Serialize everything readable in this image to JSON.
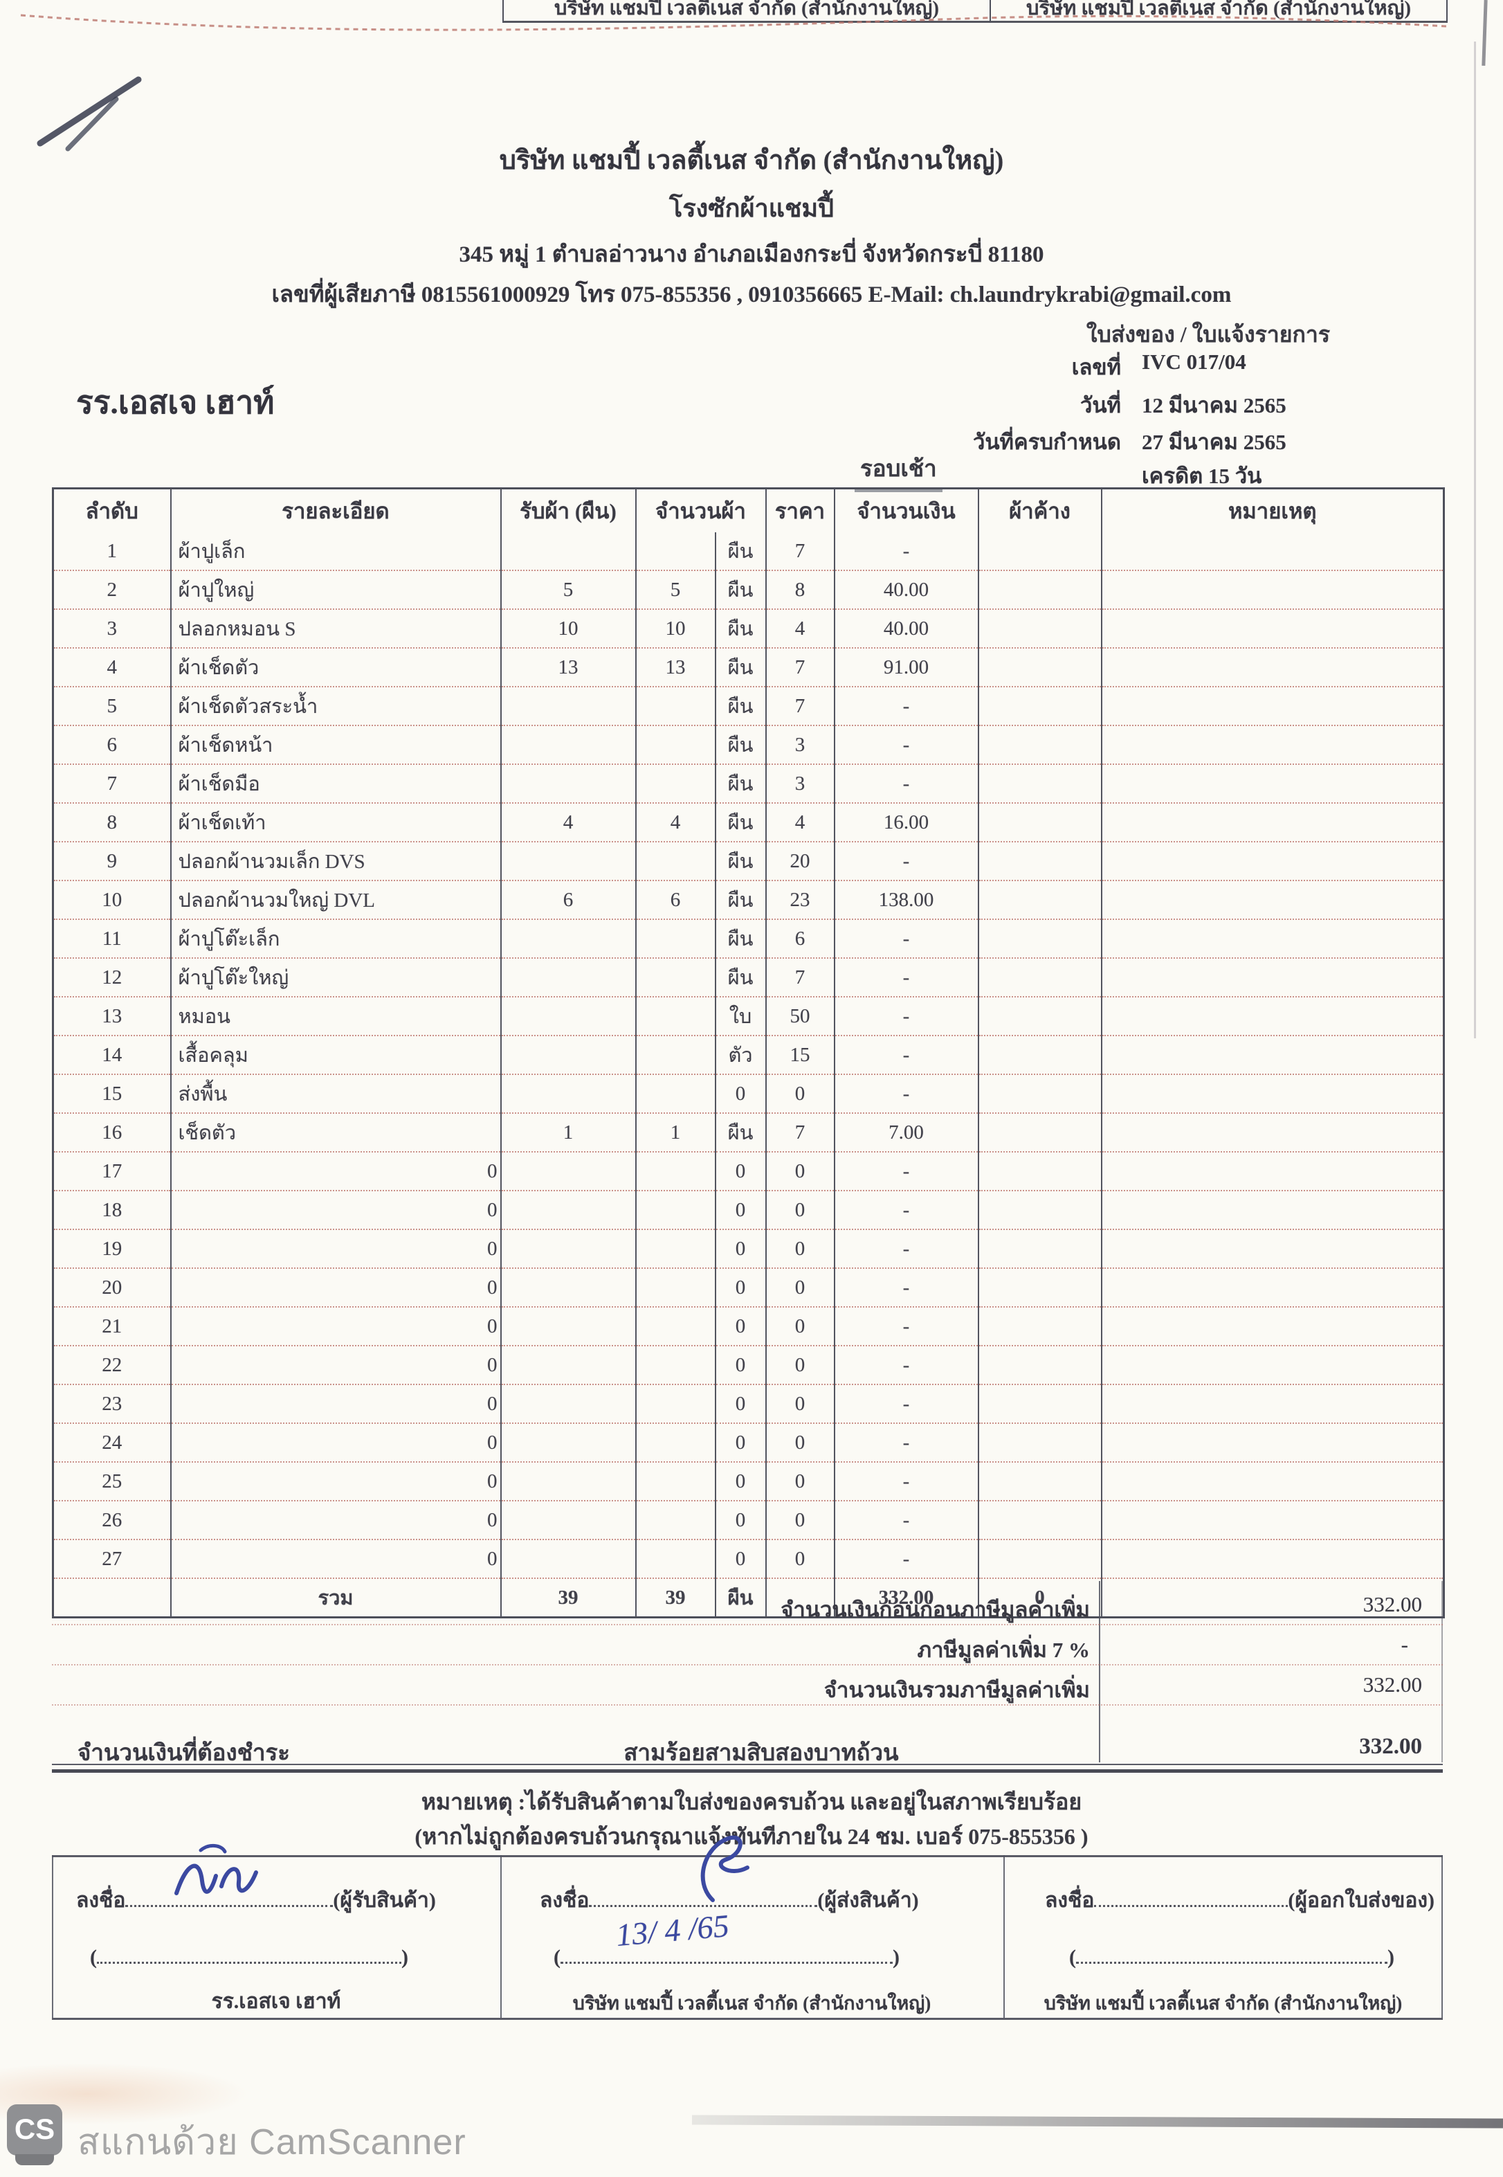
{
  "scan": {
    "top_cells": [
      "บริษัท แชมปี้ เวลตี้เนส จำกัด (สำนักงานใหญ่)",
      "บริษัท แชมปี้ เวลตี้เนส จำกัด (สำนักงานใหญ่)"
    ],
    "camscanner_logo": "CS",
    "camscanner_label": "สแกนด้วย CamScanner"
  },
  "header": {
    "company_name": "บริษัท แชมปี้ เวลตี้เนส จำกัด (สำนักงานใหญ่)",
    "company_sub": "โรงซักผ้าแชมปี้",
    "address": "345 หมู่ 1 ตำบลอ่าวนาง อำเภอเมืองกระบี่ จังหวัดกระบี่ 81180",
    "tax_line": "เลขที่ผู้เสียภาษี 0815561000929 โทร 075-855356 , 0910356665 E-Mail: ch.laundrykrabi@gmail.com",
    "doc_type": "ใบส่งของ / ใบแจ้งรายการ"
  },
  "meta": {
    "customer": "รร.เอสเจ เฮาท์",
    "no_label": "เลขที่",
    "no_value": "IVC 017/04",
    "date_label": "วันที่",
    "date_value": "12 มีนาคม 2565",
    "due_label": "วันที่ครบกำหนด",
    "due_value": "27 มีนาคม 2565",
    "credit_value": "เครดิต 15 วัน",
    "round_label": "รอบเช้า"
  },
  "table": {
    "headers": {
      "no": "ลำดับ",
      "desc": "รายละเอียด",
      "received": "รับผ้า (ผืน)",
      "qty": "จำนวนผ้า",
      "price": "ราคา",
      "amount": "จำนวนเงิน",
      "pending": "ผ้าค้าง",
      "note": "หมายเหตุ"
    },
    "rows": [
      {
        "no": "1",
        "desc": "ผ้าปูเล็ก",
        "received": "",
        "qty": "",
        "unit": "ผืน",
        "price": "7",
        "amount": "-",
        "pending": "",
        "note": ""
      },
      {
        "no": "2",
        "desc": "ผ้าปูใหญ่",
        "received": "5",
        "qty": "5",
        "unit": "ผืน",
        "price": "8",
        "amount": "40.00",
        "pending": "",
        "note": ""
      },
      {
        "no": "3",
        "desc": "ปลอกหมอน S",
        "received": "10",
        "qty": "10",
        "unit": "ผืน",
        "price": "4",
        "amount": "40.00",
        "pending": "",
        "note": ""
      },
      {
        "no": "4",
        "desc": "ผ้าเช็ดตัว",
        "received": "13",
        "qty": "13",
        "unit": "ผืน",
        "price": "7",
        "amount": "91.00",
        "pending": "",
        "note": ""
      },
      {
        "no": "5",
        "desc": "ผ้าเช็ดตัวสระน้ำ",
        "received": "",
        "qty": "",
        "unit": "ผืน",
        "price": "7",
        "amount": "-",
        "pending": "",
        "note": ""
      },
      {
        "no": "6",
        "desc": "ผ้าเช็ดหน้า",
        "received": "",
        "qty": "",
        "unit": "ผืน",
        "price": "3",
        "amount": "-",
        "pending": "",
        "note": ""
      },
      {
        "no": "7",
        "desc": "ผ้าเช็ดมือ",
        "received": "",
        "qty": "",
        "unit": "ผืน",
        "price": "3",
        "amount": "-",
        "pending": "",
        "note": ""
      },
      {
        "no": "8",
        "desc": "ผ้าเช็ดเท้า",
        "received": "4",
        "qty": "4",
        "unit": "ผืน",
        "price": "4",
        "amount": "16.00",
        "pending": "",
        "note": ""
      },
      {
        "no": "9",
        "desc": "ปลอกผ้านวมเล็ก DVS",
        "received": "",
        "qty": "",
        "unit": "ผืน",
        "price": "20",
        "amount": "-",
        "pending": "",
        "note": ""
      },
      {
        "no": "10",
        "desc": "ปลอกผ้านวมใหญ่ DVL",
        "received": "6",
        "qty": "6",
        "unit": "ผืน",
        "price": "23",
        "amount": "138.00",
        "pending": "",
        "note": ""
      },
      {
        "no": "11",
        "desc": "ผ้าปูโต๊ะเล็ก",
        "received": "",
        "qty": "",
        "unit": "ผืน",
        "price": "6",
        "amount": "-",
        "pending": "",
        "note": ""
      },
      {
        "no": "12",
        "desc": "ผ้าปูโต๊ะใหญ่",
        "received": "",
        "qty": "",
        "unit": "ผืน",
        "price": "7",
        "amount": "-",
        "pending": "",
        "note": ""
      },
      {
        "no": "13",
        "desc": "หมอน",
        "received": "",
        "qty": "",
        "unit": "ใบ",
        "price": "50",
        "amount": "-",
        "pending": "",
        "note": ""
      },
      {
        "no": "14",
        "desc": "เสื้อคลุม",
        "received": "",
        "qty": "",
        "unit": "ตัว",
        "price": "15",
        "amount": "-",
        "pending": "",
        "note": ""
      },
      {
        "no": "15",
        "desc": "ส่งพื้น",
        "received": "",
        "qty": "",
        "unit": "0",
        "price": "0",
        "amount": "-",
        "pending": "",
        "note": ""
      },
      {
        "no": "16",
        "desc": "เช็ดตัว",
        "received": "1",
        "qty": "1",
        "unit": "ผืน",
        "price": "7",
        "amount": "7.00",
        "pending": "",
        "note": ""
      },
      {
        "no": "17",
        "desc": "0",
        "received": "",
        "qty": "",
        "unit": "0",
        "price": "0",
        "amount": "-",
        "pending": "",
        "note": ""
      },
      {
        "no": "18",
        "desc": "0",
        "received": "",
        "qty": "",
        "unit": "0",
        "price": "0",
        "amount": "-",
        "pending": "",
        "note": ""
      },
      {
        "no": "19",
        "desc": "0",
        "received": "",
        "qty": "",
        "unit": "0",
        "price": "0",
        "amount": "-",
        "pending": "",
        "note": ""
      },
      {
        "no": "20",
        "desc": "0",
        "received": "",
        "qty": "",
        "unit": "0",
        "price": "0",
        "amount": "-",
        "pending": "",
        "note": ""
      },
      {
        "no": "21",
        "desc": "0",
        "received": "",
        "qty": "",
        "unit": "0",
        "price": "0",
        "amount": "-",
        "pending": "",
        "note": ""
      },
      {
        "no": "22",
        "desc": "0",
        "received": "",
        "qty": "",
        "unit": "0",
        "price": "0",
        "amount": "-",
        "pending": "",
        "note": ""
      },
      {
        "no": "23",
        "desc": "0",
        "received": "",
        "qty": "",
        "unit": "0",
        "price": "0",
        "amount": "-",
        "pending": "",
        "note": ""
      },
      {
        "no": "24",
        "desc": "0",
        "received": "",
        "qty": "",
        "unit": "0",
        "price": "0",
        "amount": "-",
        "pending": "",
        "note": ""
      },
      {
        "no": "25",
        "desc": "0",
        "received": "",
        "qty": "",
        "unit": "0",
        "price": "0",
        "amount": "-",
        "pending": "",
        "note": ""
      },
      {
        "no": "26",
        "desc": "0",
        "received": "",
        "qty": "",
        "unit": "0",
        "price": "0",
        "amount": "-",
        "pending": "",
        "note": ""
      },
      {
        "no": "27",
        "desc": "0",
        "received": "",
        "qty": "",
        "unit": "0",
        "price": "0",
        "amount": "-",
        "pending": "",
        "note": ""
      }
    ],
    "total": {
      "label": "รวม",
      "received": "39",
      "qty": "39",
      "unit": "ผืน",
      "price": "",
      "amount": "332.00",
      "pending": "0",
      "note": ""
    }
  },
  "summary": {
    "pre_vat_label": "จำนวนเงินก่อนก่อนภาษีมูลค่าเพิ่ม",
    "pre_vat_value": "332.00",
    "vat_label": "ภาษีมูลค่าเพิ่ม 7 %",
    "vat_value": "-",
    "grand_label": "จำนวนเงินรวมภาษีมูลค่าเพิ่ม",
    "grand_value": "332.00",
    "due_label": "จำนวนเงินที่ต้องชำระ",
    "due_words": "สามร้อยสามสิบสองบาทถ้วน",
    "due_value": "332.00"
  },
  "notes": {
    "line1": "หมายเหตุ :ได้รับสินค้าตามใบส่งของครบถ้วน และอยู่ในสภาพเรียบร้อย",
    "line2": "(หากไม่ถูกต้องครบถ้วนกรุณาแจ้งทันทีภายใน 24 ชม. เบอร์ 075-855356 )"
  },
  "signatures": {
    "sign_label": "ลงชื่อ",
    "paren_open": "(",
    "paren_close": ")",
    "col1": {
      "role": "(ผู้รับสินค้า)",
      "org": "รร.เอสเจ เฮาท์"
    },
    "col2": {
      "role": "(ผู้ส่งสินค้า)",
      "date": "13/ 4 /65",
      "org": "บริษัท แชมปี้ เวลตี้เนส จำกัด (สำนักงานใหญ่)"
    },
    "col3": {
      "role": "(ผู้ออกใบส่งของ)",
      "org": "บริษัท แชมปี้ เวลตี้เนส จำกัด (สำนักงานใหญ่)"
    }
  },
  "colors": {
    "ink": "#3a3a43",
    "rule_red": "#bc746c",
    "line_dark": "#4d4f5a",
    "pen_blue": "#3b49a1",
    "watermark_gray": "#a6a6a6"
  }
}
